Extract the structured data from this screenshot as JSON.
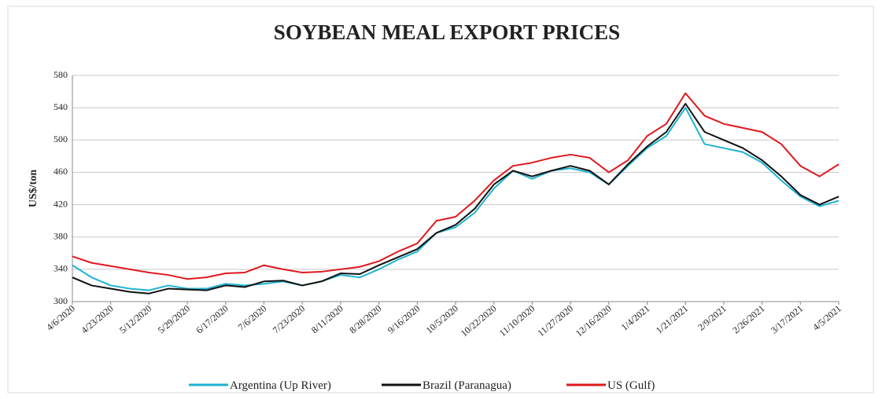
{
  "chart_data": {
    "type": "line",
    "title": "SOYBEAN MEAL EXPORT PRICES",
    "y_label": "US$/ton",
    "categories": [
      "4/6/2020",
      null,
      "4/23/2020",
      null,
      "5/12/2020",
      null,
      "5/29/2020",
      null,
      "6/17/2020",
      null,
      "7/6/2020",
      null,
      "7/23/2020",
      null,
      "8/11/2020",
      null,
      "8/28/2020",
      null,
      "9/16/2020",
      null,
      "10/5/2020",
      null,
      "10/22/2020",
      null,
      "11/10/2020",
      null,
      "11/27/2020",
      null,
      "12/16/2020",
      null,
      "1/4/2021",
      null,
      "1/21/2021",
      null,
      "2/9/2021",
      null,
      "2/26/2021",
      null,
      "3/17/2021",
      null,
      "4/5/2021"
    ],
    "series": [
      {
        "name": "Argentina (Up River)",
        "color": "#1fb3d1",
        "values": [
          345,
          330,
          320,
          316,
          314,
          320,
          316,
          316,
          322,
          320,
          322,
          325,
          320,
          325,
          333,
          330,
          340,
          352,
          362,
          385,
          392,
          410,
          440,
          462,
          452,
          462,
          465,
          460,
          445,
          468,
          490,
          505,
          540,
          495,
          490,
          485,
          472,
          450,
          430,
          418,
          425
        ]
      },
      {
        "name": "Brazil (Paranagua)",
        "color": "#111111",
        "values": [
          330,
          320,
          316,
          312,
          310,
          316,
          315,
          314,
          320,
          318,
          325,
          326,
          320,
          325,
          335,
          334,
          345,
          355,
          365,
          385,
          395,
          415,
          445,
          462,
          455,
          462,
          468,
          462,
          445,
          470,
          492,
          510,
          545,
          510,
          500,
          490,
          475,
          455,
          432,
          420,
          430
        ]
      },
      {
        "name": "US (Gulf)",
        "color": "#e0191e",
        "values": [
          356,
          348,
          344,
          340,
          336,
          333,
          328,
          330,
          335,
          336,
          345,
          340,
          336,
          337,
          340,
          343,
          350,
          362,
          372,
          400,
          405,
          425,
          450,
          468,
          472,
          478,
          482,
          478,
          460,
          475,
          505,
          520,
          558,
          530,
          520,
          515,
          510,
          495,
          468,
          455,
          470
        ]
      }
    ],
    "ylim": [
      300,
      580
    ],
    "yticks": [
      300,
      340,
      380,
      420,
      460,
      500,
      540,
      580
    ],
    "grid": true
  }
}
